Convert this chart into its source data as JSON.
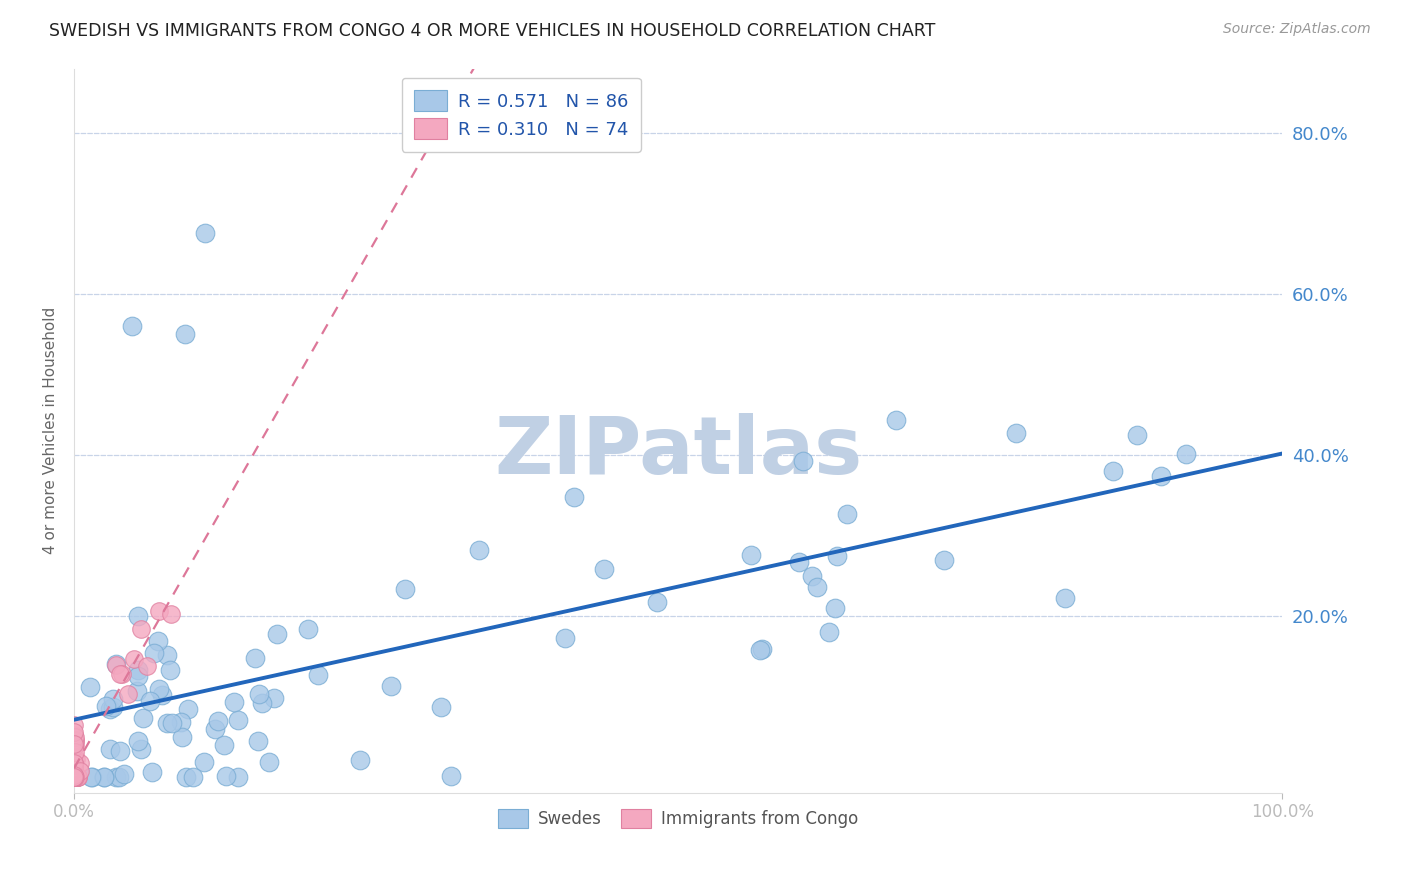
{
  "title": "SWEDISH VS IMMIGRANTS FROM CONGO 4 OR MORE VEHICLES IN HOUSEHOLD CORRELATION CHART",
  "source": "Source: ZipAtlas.com",
  "ylabel": "4 or more Vehicles in Household",
  "xlim": [
    0.0,
    1.0
  ],
  "ylim": [
    -0.02,
    0.88
  ],
  "ytick_positions": [
    0.0,
    0.2,
    0.4,
    0.6,
    0.8
  ],
  "ytick_labels_right": [
    "",
    "20.0%",
    "40.0%",
    "60.0%",
    "80.0%"
  ],
  "watermark": "ZIPatlas",
  "legend_line1": "R = 0.571   N = 86",
  "legend_line2": "R = 0.310   N = 74",
  "blue_marker_color": "#a8c8e8",
  "blue_marker_edge": "#7aadd4",
  "pink_marker_color": "#f4a8c0",
  "pink_marker_edge": "#e080a0",
  "blue_line_color": "#2266bb",
  "pink_line_color": "#dd7799",
  "grid_color": "#c8d4e8",
  "title_color": "#222222",
  "source_color": "#999999",
  "legend_text_color": "#2255aa",
  "watermark_color": "#c0d0e4",
  "background_color": "#ffffff",
  "plot_bg_color": "#ffffff",
  "seed_blue": 42,
  "seed_pink": 77,
  "n_blue": 86,
  "n_pink": 74,
  "blue_slope": 0.42,
  "blue_intercept": 0.01,
  "pink_slope": 2.8,
  "pink_intercept": 0.005
}
